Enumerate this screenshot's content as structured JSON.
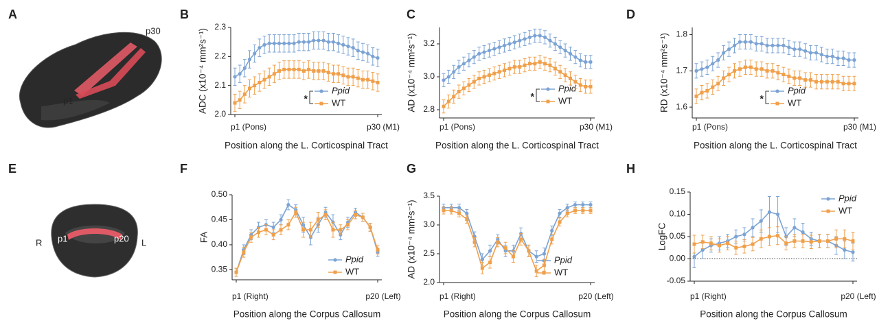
{
  "panel_labels": [
    "A",
    "B",
    "C",
    "D",
    "E",
    "F",
    "G",
    "H"
  ],
  "images": {
    "sagittal": [
      "p30",
      "p1"
    ],
    "coronal": [
      "R",
      "p1",
      "p20",
      "L"
    ]
  },
  "chart_data": [
    {
      "type": "line",
      "y_label": "ADC (x10⁻⁴ mm²s⁻¹)",
      "x_label": "Position along the L. Corticospinal Tract",
      "annotation": "*",
      "categories": [
        "p1 (Pons)",
        null,
        null,
        null,
        null,
        null,
        null,
        null,
        null,
        null,
        null,
        null,
        null,
        null,
        null,
        null,
        null,
        null,
        null,
        null,
        null,
        null,
        null,
        null,
        null,
        null,
        null,
        null,
        null,
        "p30 (M1)"
      ],
      "ylim": [
        2.0,
        2.3
      ],
      "yticks": [
        {
          "value": 2.0,
          "label": "2.0"
        },
        2.1,
        2.2,
        2.3
      ],
      "series": [
        {
          "name": "Ppid",
          "italic": true,
          "color": "#7ba3d4",
          "marker": "circle",
          "values": [
            2.13,
            2.14,
            2.16,
            2.19,
            2.21,
            2.23,
            2.24,
            2.245,
            2.245,
            2.245,
            2.245,
            2.245,
            2.245,
            2.25,
            2.25,
            2.25,
            2.255,
            2.255,
            2.255,
            2.25,
            2.25,
            2.245,
            2.24,
            2.235,
            2.23,
            2.22,
            2.215,
            2.21,
            2.2,
            2.195
          ],
          "errors": [
            0.03,
            0.03,
            0.03,
            0.03,
            0.03,
            0.03,
            0.03,
            0.03,
            0.03,
            0.03,
            0.03,
            0.03,
            0.03,
            0.03,
            0.03,
            0.03,
            0.03,
            0.03,
            0.03,
            0.03,
            0.03,
            0.03,
            0.03,
            0.03,
            0.03,
            0.03,
            0.03,
            0.03,
            0.03,
            0.03
          ]
        },
        {
          "name": "WT",
          "italic": false,
          "color": "#f0a04b",
          "marker": "square",
          "values": [
            2.04,
            2.05,
            2.07,
            2.09,
            2.1,
            2.11,
            2.12,
            2.13,
            2.14,
            2.15,
            2.155,
            2.155,
            2.155,
            2.155,
            2.15,
            2.155,
            2.15,
            2.15,
            2.15,
            2.145,
            2.14,
            2.14,
            2.135,
            2.13,
            2.13,
            2.125,
            2.12,
            2.12,
            2.115,
            2.11
          ],
          "errors": [
            0.03,
            0.03,
            0.03,
            0.03,
            0.03,
            0.03,
            0.03,
            0.03,
            0.03,
            0.03,
            0.03,
            0.03,
            0.03,
            0.03,
            0.03,
            0.03,
            0.03,
            0.03,
            0.03,
            0.03,
            0.03,
            0.03,
            0.03,
            0.03,
            0.03,
            0.03,
            0.03,
            0.03,
            0.03,
            0.03
          ]
        }
      ]
    },
    {
      "type": "line",
      "y_label": "AD (x10⁻⁴ mm²s⁻¹)",
      "x_label": "Position along the L. Corticospinal Tract",
      "annotation": "*",
      "categories": [
        "p1 (Pons)",
        null,
        null,
        null,
        null,
        null,
        null,
        null,
        null,
        null,
        null,
        null,
        null,
        null,
        null,
        null,
        null,
        null,
        null,
        null,
        null,
        null,
        null,
        null,
        null,
        null,
        null,
        null,
        null,
        "p30 (M1)"
      ],
      "ylim": [
        2.75,
        3.3
      ],
      "yticks": [
        2.8,
        {
          "value": 3.0,
          "label": "3.0"
        },
        3.2
      ],
      "series": [
        {
          "name": "Ppid",
          "italic": true,
          "color": "#7ba3d4",
          "marker": "circle",
          "values": [
            2.98,
            3.0,
            3.03,
            3.06,
            3.08,
            3.1,
            3.12,
            3.14,
            3.15,
            3.16,
            3.17,
            3.18,
            3.19,
            3.2,
            3.21,
            3.22,
            3.23,
            3.24,
            3.25,
            3.25,
            3.24,
            3.22,
            3.2,
            3.18,
            3.16,
            3.14,
            3.12,
            3.1,
            3.09,
            3.09
          ],
          "errors": [
            0.04,
            0.04,
            0.04,
            0.04,
            0.04,
            0.04,
            0.04,
            0.04,
            0.04,
            0.04,
            0.04,
            0.04,
            0.04,
            0.04,
            0.04,
            0.04,
            0.04,
            0.04,
            0.04,
            0.04,
            0.04,
            0.04,
            0.04,
            0.04,
            0.04,
            0.04,
            0.04,
            0.04,
            0.04,
            0.04
          ]
        },
        {
          "name": "WT",
          "italic": false,
          "color": "#f0a04b",
          "marker": "square",
          "values": [
            2.82,
            2.85,
            2.88,
            2.91,
            2.93,
            2.95,
            2.97,
            2.99,
            3.0,
            3.01,
            3.02,
            3.03,
            3.04,
            3.05,
            3.06,
            3.06,
            3.07,
            3.08,
            3.08,
            3.09,
            3.08,
            3.07,
            3.05,
            3.03,
            3.01,
            2.99,
            2.97,
            2.95,
            2.94,
            2.94
          ],
          "errors": [
            0.04,
            0.04,
            0.04,
            0.04,
            0.04,
            0.04,
            0.04,
            0.04,
            0.04,
            0.04,
            0.04,
            0.04,
            0.04,
            0.04,
            0.04,
            0.04,
            0.04,
            0.04,
            0.04,
            0.04,
            0.04,
            0.04,
            0.04,
            0.04,
            0.04,
            0.04,
            0.04,
            0.04,
            0.04,
            0.04
          ]
        }
      ]
    },
    {
      "type": "line",
      "y_label": "RD (x10⁻⁴ mm²s⁻¹)",
      "x_label": "Position along the L. Corticospinal Tract",
      "annotation": "*",
      "categories": [
        "p1 (Pons)",
        null,
        null,
        null,
        null,
        null,
        null,
        null,
        null,
        null,
        null,
        null,
        null,
        null,
        null,
        null,
        null,
        null,
        null,
        null,
        null,
        null,
        null,
        null,
        null,
        null,
        null,
        null,
        null,
        "p30 (M1)"
      ],
      "ylim": [
        1.57,
        1.82
      ],
      "yticks": [
        1.6,
        1.7,
        1.8
      ],
      "series": [
        {
          "name": "Ppid",
          "italic": true,
          "color": "#7ba3d4",
          "marker": "circle",
          "values": [
            1.7,
            1.705,
            1.71,
            1.72,
            1.73,
            1.75,
            1.76,
            1.77,
            1.78,
            1.78,
            1.78,
            1.775,
            1.775,
            1.77,
            1.77,
            1.77,
            1.77,
            1.765,
            1.76,
            1.76,
            1.755,
            1.75,
            1.75,
            1.745,
            1.74,
            1.74,
            1.735,
            1.735,
            1.73,
            1.73
          ],
          "errors": [
            0.02,
            0.02,
            0.02,
            0.02,
            0.02,
            0.02,
            0.02,
            0.02,
            0.02,
            0.02,
            0.02,
            0.02,
            0.02,
            0.02,
            0.02,
            0.02,
            0.02,
            0.02,
            0.02,
            0.02,
            0.02,
            0.02,
            0.02,
            0.02,
            0.02,
            0.02,
            0.02,
            0.02,
            0.02,
            0.02
          ]
        },
        {
          "name": "WT",
          "italic": false,
          "color": "#f0a04b",
          "marker": "square",
          "values": [
            1.63,
            1.64,
            1.645,
            1.655,
            1.665,
            1.68,
            1.69,
            1.7,
            1.705,
            1.71,
            1.71,
            1.705,
            1.705,
            1.7,
            1.7,
            1.695,
            1.69,
            1.685,
            1.68,
            1.68,
            1.675,
            1.675,
            1.67,
            1.67,
            1.67,
            1.67,
            1.67,
            1.665,
            1.665,
            1.665
          ],
          "errors": [
            0.02,
            0.02,
            0.02,
            0.02,
            0.02,
            0.02,
            0.02,
            0.02,
            0.02,
            0.02,
            0.02,
            0.02,
            0.02,
            0.02,
            0.02,
            0.02,
            0.02,
            0.02,
            0.02,
            0.02,
            0.02,
            0.02,
            0.02,
            0.02,
            0.02,
            0.02,
            0.02,
            0.02,
            0.02,
            0.02
          ]
        }
      ]
    },
    {
      "type": "line",
      "y_label": "FA",
      "x_label": "Position along the Corpus Callosum",
      "categories": [
        "p1 (Right)",
        null,
        null,
        null,
        null,
        null,
        null,
        null,
        null,
        null,
        null,
        null,
        null,
        null,
        null,
        null,
        null,
        null,
        null,
        "p20 (Left)"
      ],
      "ylim": [
        0.33,
        0.5
      ],
      "yticks": [
        0.35,
        {
          "value": 0.4,
          "label": "0.40"
        },
        0.45,
        {
          "value": 0.5,
          "label": "0.50"
        }
      ],
      "series": [
        {
          "name": "Ppid",
          "italic": true,
          "color": "#7ba3d4",
          "marker": "circle",
          "values": [
            0.345,
            0.39,
            0.42,
            0.435,
            0.44,
            0.435,
            0.45,
            0.48,
            0.47,
            0.44,
            0.415,
            0.44,
            0.465,
            0.445,
            0.42,
            0.445,
            0.465,
            0.455,
            0.435,
            0.385
          ],
          "errors": [
            0.008,
            0.01,
            0.01,
            0.01,
            0.01,
            0.01,
            0.01,
            0.01,
            0.01,
            0.015,
            0.015,
            0.015,
            0.01,
            0.015,
            0.01,
            0.01,
            0.008,
            0.008,
            0.008,
            0.008
          ]
        },
        {
          "name": "WT",
          "italic": false,
          "color": "#f0a04b",
          "marker": "square",
          "values": [
            0.345,
            0.385,
            0.415,
            0.425,
            0.43,
            0.42,
            0.43,
            0.44,
            0.465,
            0.43,
            0.43,
            0.45,
            0.46,
            0.43,
            0.43,
            0.44,
            0.46,
            0.455,
            0.435,
            0.39
          ],
          "errors": [
            0.008,
            0.01,
            0.01,
            0.01,
            0.01,
            0.01,
            0.01,
            0.01,
            0.01,
            0.015,
            0.015,
            0.015,
            0.01,
            0.015,
            0.01,
            0.01,
            0.008,
            0.008,
            0.008,
            0.008
          ]
        }
      ]
    },
    {
      "type": "line",
      "y_label": "AD (x10⁻⁴ mm²s⁻¹)",
      "x_label": "Position along the Corpus Callosum",
      "categories": [
        "p1 (Right)",
        null,
        null,
        null,
        null,
        null,
        null,
        null,
        null,
        null,
        null,
        null,
        null,
        null,
        null,
        null,
        null,
        null,
        null,
        "p20 (Left)"
      ],
      "ylim": [
        2.0,
        3.5
      ],
      "yticks": [
        {
          "value": 2.0,
          "label": "2.0"
        },
        2.5,
        {
          "value": 3.0,
          "label": "3.0"
        },
        3.5
      ],
      "series": [
        {
          "name": "Ppid",
          "italic": true,
          "color": "#7ba3d4",
          "marker": "circle",
          "values": [
            3.3,
            3.3,
            3.3,
            3.2,
            2.8,
            2.4,
            2.55,
            2.75,
            2.55,
            2.55,
            2.85,
            2.55,
            2.45,
            2.5,
            2.9,
            3.2,
            3.3,
            3.35,
            3.35,
            3.35
          ],
          "errors": [
            0.06,
            0.06,
            0.06,
            0.07,
            0.08,
            0.1,
            0.1,
            0.08,
            0.1,
            0.1,
            0.1,
            0.1,
            0.1,
            0.1,
            0.08,
            0.07,
            0.06,
            0.05,
            0.05,
            0.05
          ]
        },
        {
          "name": "WT",
          "italic": false,
          "color": "#f0a04b",
          "marker": "square",
          "values": [
            3.25,
            3.25,
            3.2,
            3.1,
            2.7,
            2.25,
            2.35,
            2.7,
            2.6,
            2.45,
            2.75,
            2.55,
            2.2,
            2.3,
            2.75,
            3.05,
            3.2,
            3.25,
            3.25,
            3.25
          ],
          "errors": [
            0.06,
            0.06,
            0.06,
            0.07,
            0.08,
            0.1,
            0.1,
            0.08,
            0.1,
            0.1,
            0.1,
            0.1,
            0.1,
            0.1,
            0.08,
            0.07,
            0.06,
            0.05,
            0.05,
            0.05
          ]
        }
      ]
    },
    {
      "type": "line",
      "y_label": "LogFC",
      "x_label": "Position along the Corpus Callosum",
      "zero_line": true,
      "categories": [
        "p1 (Right)",
        null,
        null,
        null,
        null,
        null,
        null,
        null,
        null,
        null,
        null,
        null,
        null,
        null,
        null,
        null,
        null,
        null,
        null,
        "p20 (Left)"
      ],
      "ylim": [
        -0.05,
        0.15
      ],
      "yticks": [
        -0.05,
        {
          "value": 0,
          "label": "0.00"
        },
        0.05,
        {
          "value": 0.1,
          "label": "0.10"
        },
        0.15
      ],
      "series": [
        {
          "name": "Ppid",
          "italic": true,
          "color": "#7ba3d4",
          "marker": "circle",
          "values": [
            0.005,
            0.02,
            0.03,
            0.035,
            0.04,
            0.05,
            0.055,
            0.07,
            0.085,
            0.105,
            0.1,
            0.05,
            0.07,
            0.06,
            0.045,
            0.04,
            0.04,
            0.03,
            0.02,
            0.015
          ],
          "errors": [
            0.025,
            0.02,
            0.015,
            0.015,
            0.015,
            0.015,
            0.015,
            0.02,
            0.025,
            0.035,
            0.04,
            0.02,
            0.02,
            0.02,
            0.015,
            0.015,
            0.015,
            0.02,
            0.02,
            0.02
          ]
        },
        {
          "name": "WT",
          "italic": false,
          "color": "#f0a04b",
          "marker": "square",
          "values": [
            0.033,
            0.038,
            0.035,
            0.03,
            0.035,
            0.025,
            0.028,
            0.033,
            0.045,
            0.05,
            0.052,
            0.035,
            0.04,
            0.04,
            0.038,
            0.04,
            0.04,
            0.045,
            0.045,
            0.04
          ],
          "errors": [
            0.02,
            0.015,
            0.015,
            0.015,
            0.015,
            0.015,
            0.015,
            0.015,
            0.02,
            0.02,
            0.02,
            0.015,
            0.015,
            0.015,
            0.015,
            0.015,
            0.015,
            0.02,
            0.02,
            0.02
          ]
        }
      ]
    }
  ]
}
